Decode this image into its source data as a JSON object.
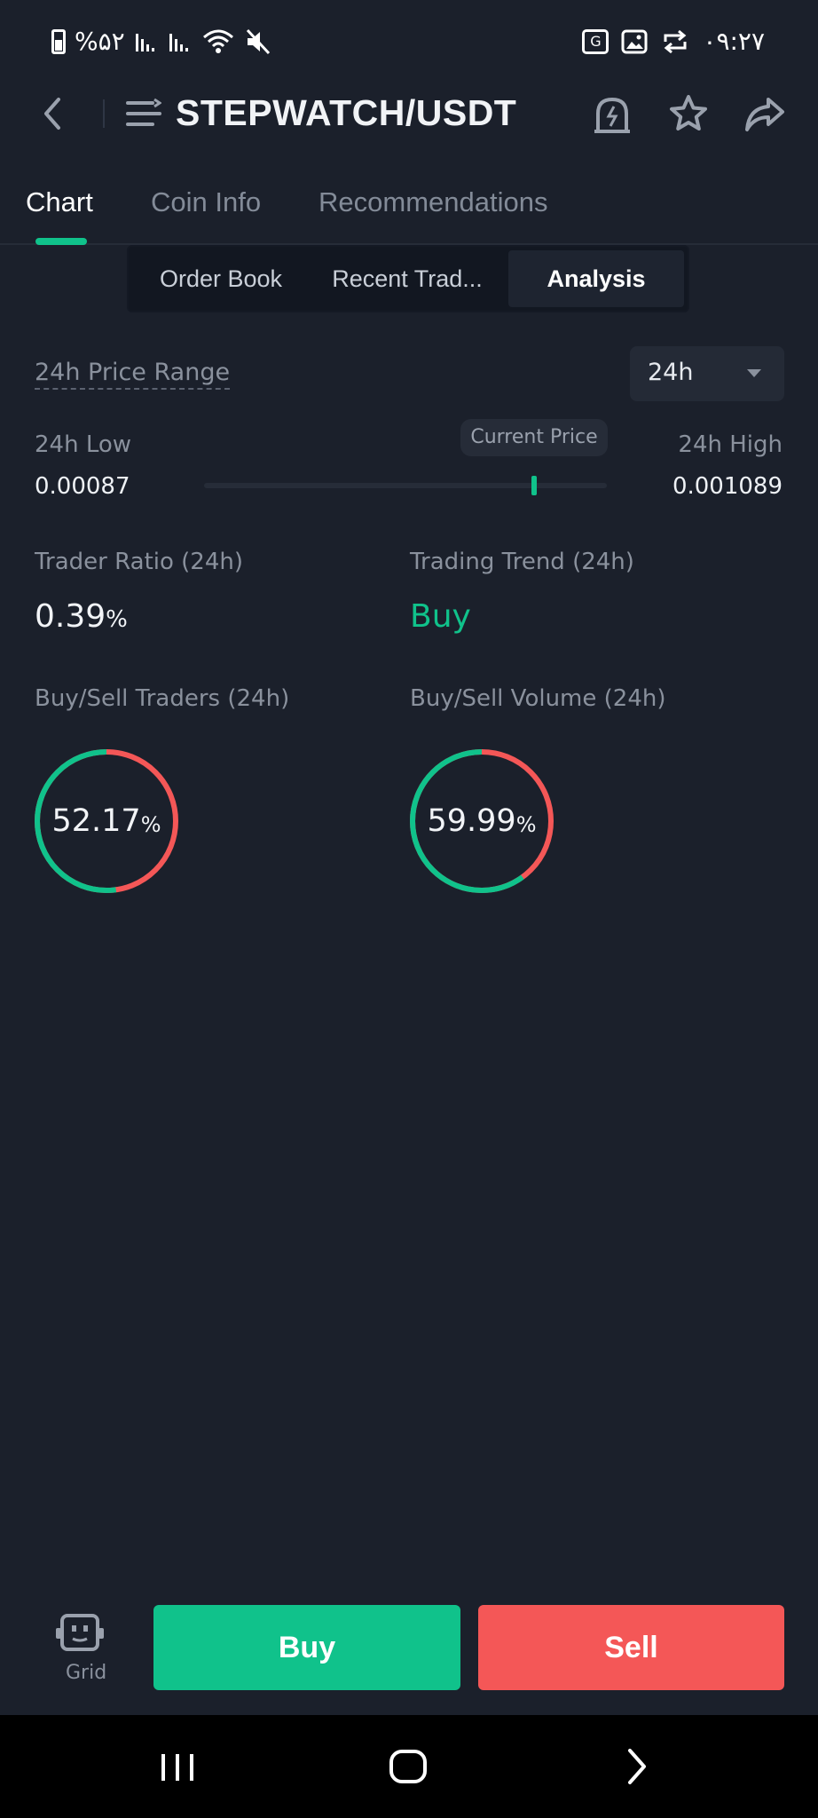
{
  "status_bar": {
    "battery_text": "%۵۲",
    "time": "۰۹:۲۷"
  },
  "header": {
    "title": "STEPWATCH/USDT"
  },
  "tabs": [
    {
      "label": "Chart",
      "active": true
    },
    {
      "label": "Coin Info",
      "active": false
    },
    {
      "label": "Recommendations",
      "active": false
    }
  ],
  "segments": [
    {
      "label": "Order Book",
      "active": false
    },
    {
      "label": "Recent Trad...",
      "active": false
    },
    {
      "label": "Analysis",
      "active": true
    }
  ],
  "price_range": {
    "label": "24h Price Range",
    "period": "24h",
    "low_label": "24h Low",
    "low_value": "0.00087",
    "high_label": "24h High",
    "high_value": "0.001089",
    "current_label": "Current Price",
    "current_position": 0.82
  },
  "stats": {
    "trader_ratio_label": "Trader Ratio (24h)",
    "trader_ratio_value": "0.39",
    "trader_ratio_unit": "%",
    "trend_label": "Trading Trend (24h)",
    "trend_value": "Buy"
  },
  "donuts": {
    "traders_label": "Buy/Sell Traders (24h)",
    "traders_value": "52.17",
    "traders_unit": "%",
    "traders_buy_fraction": 0.5217,
    "volume_label": "Buy/Sell Volume (24h)",
    "volume_value": "59.99",
    "volume_unit": "%",
    "volume_buy_fraction": 0.5999
  },
  "bottom": {
    "grid_label": "Grid",
    "buy_label": "Buy",
    "sell_label": "Sell"
  },
  "colors": {
    "buy": "#10c28b",
    "sell": "#f45757",
    "background": "#1b202b"
  }
}
